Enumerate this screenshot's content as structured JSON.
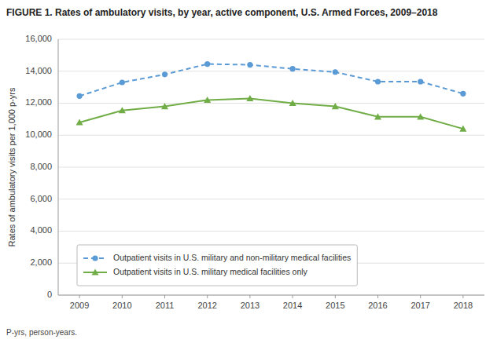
{
  "chart_data": {
    "type": "line",
    "title": "FIGURE 1. Rates of ambulatory visits, by year, active component, U.S. Armed Forces, 2009–2018",
    "y_label": "Rates of ambulatory visits per 1,000 p-yrs",
    "annotations": [
      "P-yrs, person-years."
    ],
    "x": [
      2009,
      2010,
      2011,
      2012,
      2013,
      2014,
      2015,
      2016,
      2017,
      2018
    ],
    "series": [
      {
        "name": "Outpatient visits in U.S. military and non-military medical facilities",
        "color": "#5B9BD5",
        "marker": "circle",
        "line_style": "dashed",
        "values": [
          12450,
          13300,
          13800,
          14450,
          14400,
          14150,
          13950,
          13350,
          13350,
          12600
        ]
      },
      {
        "name": "Outpatient visits in U.S. military medical facilities only",
        "color": "#70AD47",
        "marker": "triangle",
        "line_style": "solid",
        "values": [
          10800,
          11550,
          11800,
          12200,
          12300,
          12000,
          11800,
          11150,
          11150,
          10400
        ]
      }
    ],
    "xlim": [
      2008.5,
      2018.5
    ],
    "xticks": [
      2009,
      2010,
      2011,
      2012,
      2013,
      2014,
      2015,
      2016,
      2017,
      2018
    ],
    "ylim": [
      0,
      16000
    ],
    "yticks": [
      0,
      {
        "value": 2000,
        "label": "2,000"
      },
      {
        "value": 4000,
        "label": "4,000"
      },
      {
        "value": 6000,
        "label": "6,000"
      },
      {
        "value": 8000,
        "label": "8,000"
      },
      {
        "value": 10000,
        "label": "10,000"
      },
      {
        "value": 12000,
        "label": "12,000"
      },
      {
        "value": 14000,
        "label": "14,000"
      },
      {
        "value": 16000,
        "label": "16,000"
      }
    ],
    "grid": true,
    "legend": "lower left"
  }
}
